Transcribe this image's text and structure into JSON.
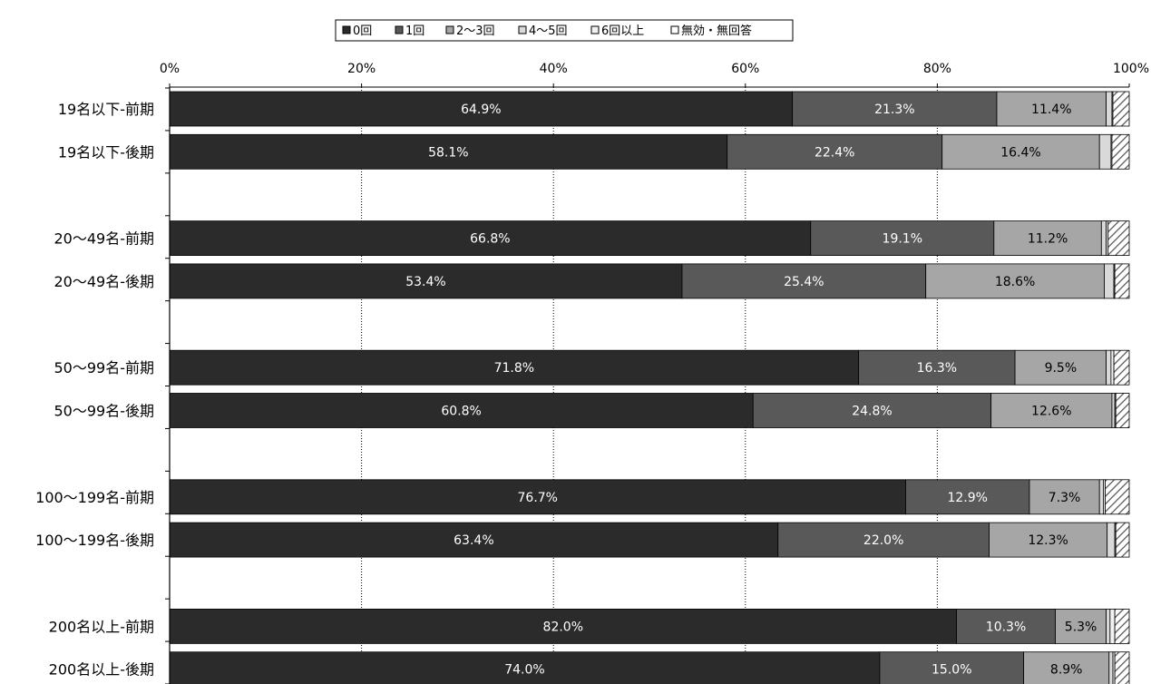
{
  "chart_data": {
    "type": "bar",
    "orientation": "horizontal",
    "stacked": "percent",
    "title": "",
    "xlabel": "",
    "ylabel": "",
    "xlim": [
      0,
      100
    ],
    "x_ticks": [
      "0%",
      "20%",
      "40%",
      "60%",
      "80%",
      "100%"
    ],
    "grid": "vertical-dotted",
    "legend_position": "top",
    "categories": [
      "19名以下-前期",
      "19名以下-後期",
      "20～49名-前期",
      "20～49名-後期",
      "50～99名-前期",
      "50～99名-後期",
      "100～199名-前期",
      "100～199名-後期",
      "200名以上-前期",
      "200名以上-後期"
    ],
    "series": [
      {
        "name": "0回",
        "color": "#2b2b2b",
        "values": [
          64.9,
          58.1,
          66.8,
          53.4,
          71.8,
          60.8,
          76.7,
          63.4,
          82.0,
          74.0
        ]
      },
      {
        "name": "1回",
        "color": "#595959",
        "values": [
          21.3,
          22.4,
          19.1,
          25.4,
          16.3,
          24.8,
          12.9,
          22.0,
          10.3,
          15.0
        ]
      },
      {
        "name": "2～3回",
        "color": "#a6a6a6",
        "values": [
          11.4,
          16.4,
          11.2,
          18.6,
          9.5,
          12.6,
          7.3,
          12.3,
          5.3,
          8.9
        ]
      },
      {
        "name": "4～5回",
        "color": "#d9d9d9",
        "values": [
          0.6,
          1.2,
          0.5,
          1.0,
          0.5,
          0.3,
          0.4,
          0.8,
          0.4,
          0.4
        ]
      },
      {
        "name": "6回以上",
        "color": "#f2f2f2",
        "values": [
          0.1,
          0.1,
          0.2,
          0.1,
          0.3,
          0.1,
          0.2,
          0.1,
          0.5,
          0.2
        ]
      },
      {
        "name": "無効・無回答",
        "color": "hatch",
        "values": [
          1.7,
          1.8,
          2.2,
          1.5,
          1.6,
          1.4,
          2.5,
          1.4,
          1.5,
          1.5
        ]
      }
    ],
    "data_labels": [
      [
        "64.9%",
        "21.3%",
        "11.4%"
      ],
      [
        "58.1%",
        "22.4%",
        "16.4%"
      ],
      [
        "66.8%",
        "19.1%",
        "11.2%"
      ],
      [
        "53.4%",
        "25.4%",
        "18.6%"
      ],
      [
        "71.8%",
        "16.3%",
        "9.5%"
      ],
      [
        "60.8%",
        "24.8%",
        "12.6%"
      ],
      [
        "76.7%",
        "12.9%",
        "7.3%"
      ],
      [
        "63.4%",
        "22.0%",
        "12.3%"
      ],
      [
        "82.0%",
        "10.3%",
        "5.3%"
      ],
      [
        "74.0%",
        "15.0%",
        "8.9%"
      ]
    ]
  }
}
